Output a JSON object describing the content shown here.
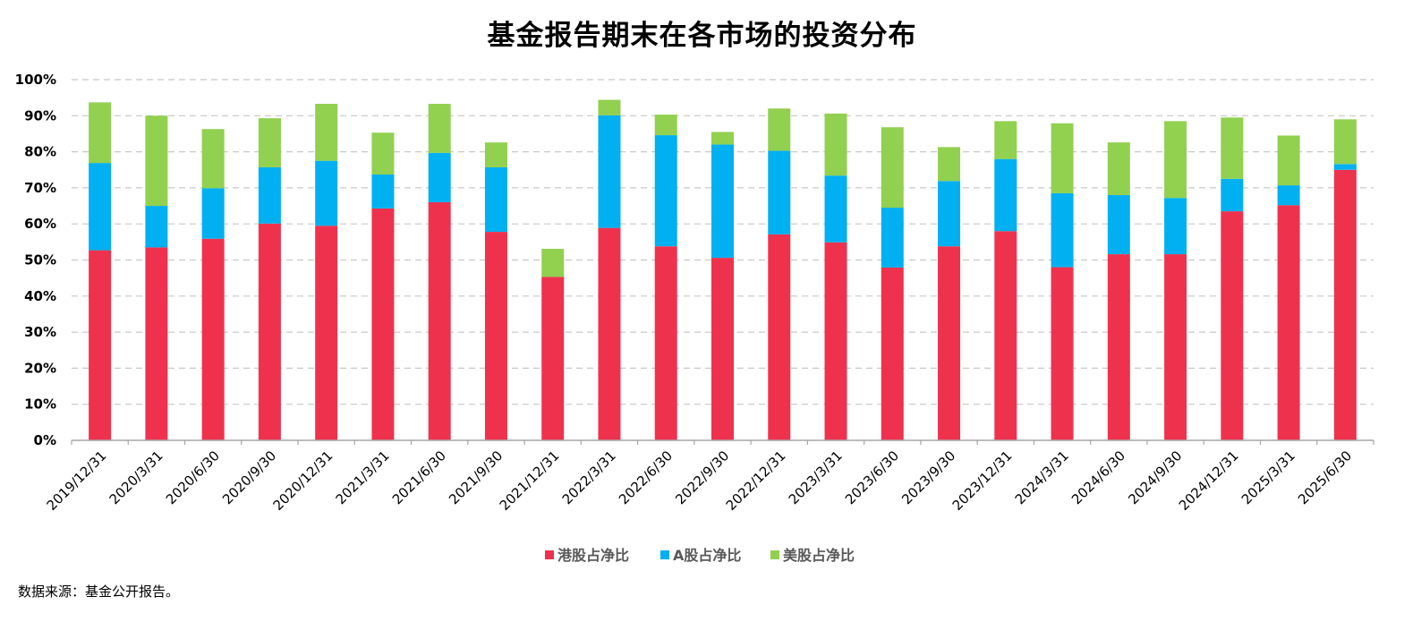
{
  "chart_data": {
    "type": "bar",
    "stacked": true,
    "title": "基金报告期末在各市场的投资分布",
    "xlabel": "",
    "ylabel": "",
    "ylim": [
      0,
      100
    ],
    "y_ticks": [
      "0%",
      "10%",
      "20%",
      "30%",
      "40%",
      "50%",
      "60%",
      "70%",
      "80%",
      "90%",
      "100%"
    ],
    "grid": true,
    "legend_position": "bottom",
    "categories": [
      "2019/12/31",
      "2020/3/31",
      "2020/6/30",
      "2020/9/30",
      "2020/12/31",
      "2021/3/31",
      "2021/6/30",
      "2021/9/30",
      "2021/12/31",
      "2022/3/31",
      "2022/6/30",
      "2022/9/30",
      "2022/12/31",
      "2023/3/31",
      "2023/6/30",
      "2023/9/30",
      "2023/12/31",
      "2024/3/31",
      "2024/6/30",
      "2024/9/30",
      "2024/12/31",
      "2025/3/31",
      "2025/6/30"
    ],
    "series": [
      {
        "name": "港股占净比",
        "color": "#EE324E",
        "values": [
          52.7,
          53.5,
          55.9,
          60.1,
          59.5,
          64.3,
          66.0,
          57.8,
          45.3,
          58.9,
          53.8,
          50.6,
          57.1,
          54.9,
          47.9,
          53.8,
          58.0,
          48.0,
          51.6,
          51.6,
          63.5,
          65.2,
          75.0
        ]
      },
      {
        "name": "A股占净比",
        "color": "#00B0F0",
        "values": [
          24.2,
          11.5,
          14.0,
          15.6,
          18.0,
          9.4,
          13.7,
          17.9,
          0,
          31.2,
          30.8,
          31.4,
          23.2,
          18.5,
          16.6,
          18.1,
          20.0,
          20.5,
          16.4,
          15.6,
          9.0,
          5.5,
          1.6
        ]
      },
      {
        "name": "美股占净比",
        "color": "#92D050",
        "values": [
          16.8,
          25.0,
          16.4,
          13.6,
          15.8,
          11.6,
          13.6,
          6.9,
          7.8,
          4.3,
          5.7,
          3.5,
          11.7,
          17.2,
          22.3,
          9.4,
          10.5,
          19.4,
          14.6,
          21.3,
          17.0,
          13.8,
          12.4
        ]
      }
    ]
  },
  "source_note": "数据来源：基金公开报告。"
}
